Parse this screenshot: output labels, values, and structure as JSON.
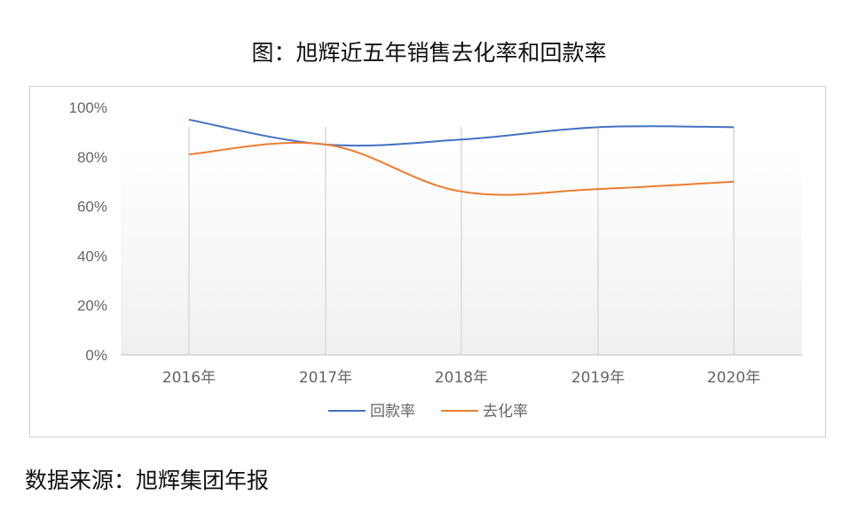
{
  "title": "图：旭辉近五年销售去化率和回款率",
  "source": "数据来源：旭辉集团年报",
  "chart_data": {
    "type": "line",
    "title": "图：旭辉近五年销售去化率和回款率",
    "categories": [
      "2016年",
      "2017年",
      "2018年",
      "2019年",
      "2020年"
    ],
    "series": [
      {
        "name": "回款率",
        "color": "#4472c4",
        "values": [
          95,
          85,
          87,
          92,
          92
        ]
      },
      {
        "name": "去化率",
        "color": "#ed7d31",
        "values": [
          81,
          85,
          66,
          67,
          70
        ]
      }
    ],
    "xlabel": "",
    "ylabel": "",
    "ylim": [
      0,
      100
    ],
    "yticks": [
      "0%",
      "20%",
      "40%",
      "60%",
      "80%",
      "100%"
    ],
    "grid": "vertical",
    "smooth": true,
    "legend_position": "bottom"
  }
}
